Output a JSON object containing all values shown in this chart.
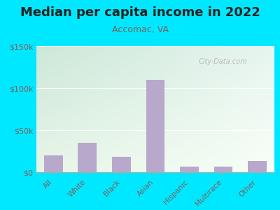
{
  "title": "Median per capita income in 2022",
  "subtitle": "Accomac, VA",
  "categories": [
    "All",
    "White",
    "Black",
    "Asian",
    "Hispanic",
    "Multirace",
    "Other"
  ],
  "values": [
    20000,
    35000,
    18000,
    110000,
    7000,
    7000,
    13000
  ],
  "bar_color": "#b8a8cc",
  "title_fontsize": 13,
  "subtitle_fontsize": 9,
  "subtitle_color": "#7a6060",
  "title_color": "#222222",
  "bg_outer": "#00e8ff",
  "tick_label_color": "#7a6060",
  "ylim": [
    0,
    150000
  ],
  "yticks": [
    0,
    50000,
    100000,
    150000
  ],
  "ytick_labels": [
    "$0",
    "$50k",
    "$100k",
    "$150k"
  ],
  "watermark": "① City-Data.com",
  "grad_top_left": "#cce8d8",
  "grad_top_right": "#e8f5f0",
  "grad_bottom_left": "#e8f5e8",
  "grad_bottom_right": "#f8fff8"
}
